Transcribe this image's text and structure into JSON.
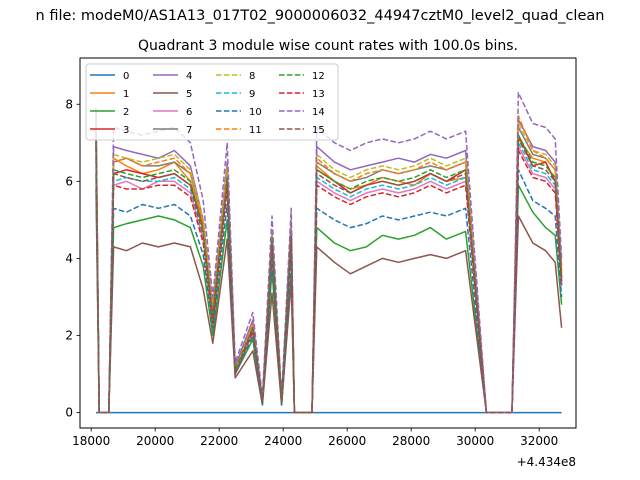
{
  "figure": {
    "suptitle": "n file: modeM0/AS1A13_017T02_9000006032_44947cztM0_level2_quad_clean"
  },
  "chart_data": {
    "type": "line",
    "title": "Quadrant 3 module wise count rates with 100.0s bins.",
    "xlabel": "",
    "ylabel": "",
    "x_offset_label": "+4.434e8",
    "xlim": [
      17650,
      33150
    ],
    "ylim": [
      -0.4,
      9.2
    ],
    "xticks": [
      18000,
      20000,
      22000,
      24000,
      26000,
      28000,
      30000,
      32000
    ],
    "yticks": [
      0,
      2,
      4,
      6,
      8
    ],
    "grid": false,
    "legend": {
      "placement": "upper-left",
      "columns": 4
    },
    "colors": [
      "#1f77b4",
      "#ff7f0e",
      "#2ca02c",
      "#d62728",
      "#9467bd",
      "#8c564b",
      "#e377c2",
      "#7f7f7f",
      "#bcbd22",
      "#17becf",
      "#1f77b4",
      "#ff7f0e",
      "#2ca02c",
      "#d62728",
      "#9467bd",
      "#8c564b"
    ],
    "dashes": [
      false,
      false,
      false,
      false,
      false,
      false,
      false,
      false,
      true,
      true,
      true,
      true,
      true,
      true,
      true,
      true
    ],
    "series": [
      {
        "name": "0",
        "values": [
          0,
          0,
          0,
          0,
          0,
          0,
          0,
          0,
          0,
          0,
          0,
          0,
          0,
          0,
          0,
          0,
          0,
          0,
          0,
          0,
          0,
          0,
          0,
          0,
          0,
          0,
          0,
          0,
          0,
          0,
          0,
          0,
          0,
          0,
          0,
          0,
          0,
          0
        ]
      },
      {
        "name": "1",
        "values": [
          7.8,
          0,
          0,
          6.6,
          6.4,
          6.2,
          6.3,
          6.5,
          6.0,
          4.8,
          2.5,
          6.2,
          1.1,
          2.2,
          0.3,
          4.4,
          0.3,
          4.8,
          0,
          0,
          6.4,
          6.0,
          5.8,
          5.9,
          6.1,
          6.0,
          5.9,
          6.2,
          6.0,
          6.1,
          0,
          0,
          0,
          7.1,
          6.6,
          6.5,
          6.0,
          3.4
        ]
      },
      {
        "name": "2",
        "values": [
          6.2,
          0,
          0,
          4.8,
          4.9,
          5.0,
          5.1,
          5.0,
          4.8,
          3.8,
          2.0,
          5.0,
          1.0,
          1.9,
          0.2,
          3.7,
          0.2,
          3.6,
          0,
          0,
          4.8,
          4.4,
          4.2,
          4.3,
          4.6,
          4.5,
          4.6,
          4.8,
          4.5,
          4.7,
          0,
          0,
          0,
          5.9,
          5.2,
          4.8,
          4.6,
          2.8
        ]
      },
      {
        "name": "3",
        "values": [
          7.4,
          0,
          0,
          6.2,
          6.3,
          6.2,
          6.1,
          6.2,
          5.9,
          4.8,
          2.5,
          6.1,
          1.1,
          2.2,
          0.3,
          4.6,
          0.3,
          4.4,
          0,
          0,
          6.3,
          6.0,
          5.7,
          5.9,
          6.0,
          5.9,
          6.0,
          6.2,
          6.0,
          6.3,
          0,
          0,
          0,
          7.2,
          6.4,
          6.5,
          6.0,
          3.5
        ]
      },
      {
        "name": "4",
        "values": [
          7.9,
          0,
          0,
          6.9,
          6.8,
          6.7,
          6.6,
          6.8,
          6.4,
          5.0,
          2.8,
          6.5,
          1.2,
          2.4,
          0.3,
          4.7,
          0.3,
          5.0,
          0,
          0,
          6.9,
          6.5,
          6.3,
          6.4,
          6.5,
          6.6,
          6.5,
          6.7,
          6.6,
          6.8,
          0,
          0,
          0,
          7.6,
          6.9,
          6.8,
          6.5,
          3.8
        ]
      },
      {
        "name": "5",
        "values": [
          5.8,
          0,
          0,
          4.3,
          4.2,
          4.4,
          4.3,
          4.4,
          4.3,
          3.2,
          1.8,
          4.5,
          0.9,
          1.6,
          0.2,
          3.1,
          0.2,
          3.4,
          0,
          0,
          4.3,
          3.9,
          3.6,
          3.8,
          4.0,
          3.9,
          4.0,
          4.1,
          4.0,
          4.2,
          0,
          0,
          0,
          5.1,
          4.4,
          4.2,
          3.9,
          2.2
        ]
      },
      {
        "name": "6",
        "values": [
          7.0,
          0,
          0,
          5.9,
          6.0,
          5.8,
          6.0,
          6.0,
          5.7,
          4.5,
          2.4,
          5.9,
          1.0,
          2.1,
          0.3,
          4.4,
          0.3,
          4.6,
          0,
          0,
          6.0,
          5.7,
          5.5,
          5.7,
          5.8,
          5.7,
          5.8,
          6.0,
          5.8,
          6.0,
          0,
          0,
          0,
          6.9,
          6.2,
          6.1,
          5.8,
          3.3
        ]
      },
      {
        "name": "7",
        "values": [
          7.3,
          0,
          0,
          6.5,
          6.6,
          6.4,
          6.4,
          6.5,
          6.2,
          4.9,
          2.6,
          6.3,
          1.1,
          2.3,
          0.3,
          4.6,
          0.3,
          4.9,
          0,
          0,
          6.5,
          6.2,
          6.0,
          6.1,
          6.3,
          6.2,
          6.3,
          6.4,
          6.3,
          6.5,
          0,
          0,
          0,
          7.4,
          6.7,
          6.6,
          6.3,
          3.6
        ]
      },
      {
        "name": "8",
        "values": [
          7.6,
          0,
          0,
          6.7,
          6.6,
          6.5,
          6.6,
          6.7,
          6.3,
          5.0,
          2.7,
          6.4,
          1.1,
          2.3,
          0.3,
          4.7,
          0.3,
          5.0,
          0,
          0,
          6.7,
          6.3,
          6.1,
          6.3,
          6.4,
          6.3,
          6.4,
          6.6,
          6.4,
          6.6,
          0,
          0,
          0,
          7.5,
          6.8,
          6.7,
          6.4,
          3.7
        ]
      },
      {
        "name": "9",
        "values": [
          7.0,
          0,
          0,
          6.0,
          6.1,
          6.0,
          6.0,
          6.1,
          5.8,
          4.6,
          2.4,
          6.0,
          1.0,
          2.1,
          0.3,
          4.4,
          0.3,
          4.6,
          0,
          0,
          6.1,
          5.8,
          5.6,
          5.8,
          5.9,
          5.8,
          5.9,
          6.1,
          5.9,
          6.1,
          0,
          0,
          0,
          7.0,
          6.3,
          6.2,
          5.9,
          3.4
        ]
      },
      {
        "name": "10",
        "values": [
          6.6,
          0,
          0,
          5.3,
          5.2,
          5.4,
          5.3,
          5.4,
          5.1,
          4.1,
          2.2,
          5.4,
          1.0,
          2.0,
          0.2,
          4.0,
          0.2,
          4.0,
          0,
          0,
          5.3,
          5.0,
          4.8,
          4.9,
          5.1,
          5.0,
          5.1,
          5.2,
          5.1,
          5.3,
          0,
          0,
          0,
          6.3,
          5.5,
          5.3,
          5.1,
          3.0
        ]
      },
      {
        "name": "11",
        "values": [
          7.5,
          0,
          0,
          6.5,
          6.6,
          6.4,
          6.5,
          6.6,
          6.2,
          4.9,
          2.6,
          6.3,
          1.1,
          2.3,
          0.3,
          4.6,
          0.3,
          4.8,
          0,
          0,
          6.6,
          6.2,
          6.0,
          6.2,
          6.3,
          6.2,
          6.3,
          6.5,
          6.3,
          6.5,
          0,
          0,
          0,
          7.7,
          6.8,
          6.6,
          6.3,
          3.6
        ]
      },
      {
        "name": "12",
        "values": [
          7.2,
          0,
          0,
          6.3,
          6.2,
          6.1,
          6.2,
          6.3,
          6.0,
          4.7,
          2.5,
          6.1,
          1.1,
          2.2,
          0.3,
          4.5,
          0.3,
          4.7,
          0,
          0,
          6.3,
          6.0,
          5.8,
          6.0,
          6.1,
          6.0,
          6.1,
          6.3,
          6.1,
          6.3,
          0,
          0,
          0,
          7.2,
          6.5,
          6.4,
          6.1,
          3.5
        ]
      },
      {
        "name": "13",
        "values": [
          6.9,
          0,
          0,
          5.9,
          5.8,
          5.8,
          5.9,
          5.9,
          5.6,
          4.4,
          2.3,
          5.8,
          1.0,
          2.1,
          0.3,
          4.3,
          0.3,
          4.5,
          0,
          0,
          5.9,
          5.6,
          5.4,
          5.6,
          5.7,
          5.6,
          5.7,
          5.9,
          5.7,
          5.9,
          0,
          0,
          0,
          6.8,
          6.1,
          6.0,
          5.7,
          3.3
        ]
      },
      {
        "name": "14",
        "values": [
          7.9,
          0,
          0,
          7.4,
          7.3,
          7.2,
          7.3,
          7.4,
          7.0,
          5.5,
          3.0,
          7.0,
          1.3,
          2.6,
          0.4,
          5.1,
          0.4,
          5.3,
          0,
          0,
          7.4,
          7.0,
          6.8,
          7.0,
          7.1,
          7.0,
          7.1,
          7.3,
          7.1,
          7.3,
          0,
          0,
          0,
          8.3,
          7.5,
          7.4,
          7.1,
          4.0
        ]
      },
      {
        "name": "15",
        "values": [
          7.1,
          0,
          0,
          6.2,
          6.1,
          6.0,
          6.1,
          6.2,
          5.9,
          4.6,
          2.5,
          6.0,
          1.0,
          2.2,
          0.3,
          4.4,
          0.3,
          4.6,
          0,
          0,
          6.2,
          5.9,
          5.7,
          5.9,
          6.0,
          5.9,
          6.0,
          6.2,
          6.0,
          6.2,
          0,
          0,
          0,
          7.1,
          6.4,
          6.3,
          6.0,
          3.4
        ]
      }
    ],
    "x": [
      18150,
      18250,
      18550,
      18700,
      19100,
      19600,
      20100,
      20600,
      21100,
      21500,
      21800,
      22250,
      22500,
      23050,
      23350,
      23650,
      23950,
      24250,
      24350,
      24900,
      25050,
      25600,
      26100,
      26600,
      27100,
      27600,
      28100,
      28600,
      29100,
      29700,
      30350,
      31050,
      31150,
      31350,
      31800,
      32200,
      32500,
      32700
    ]
  }
}
